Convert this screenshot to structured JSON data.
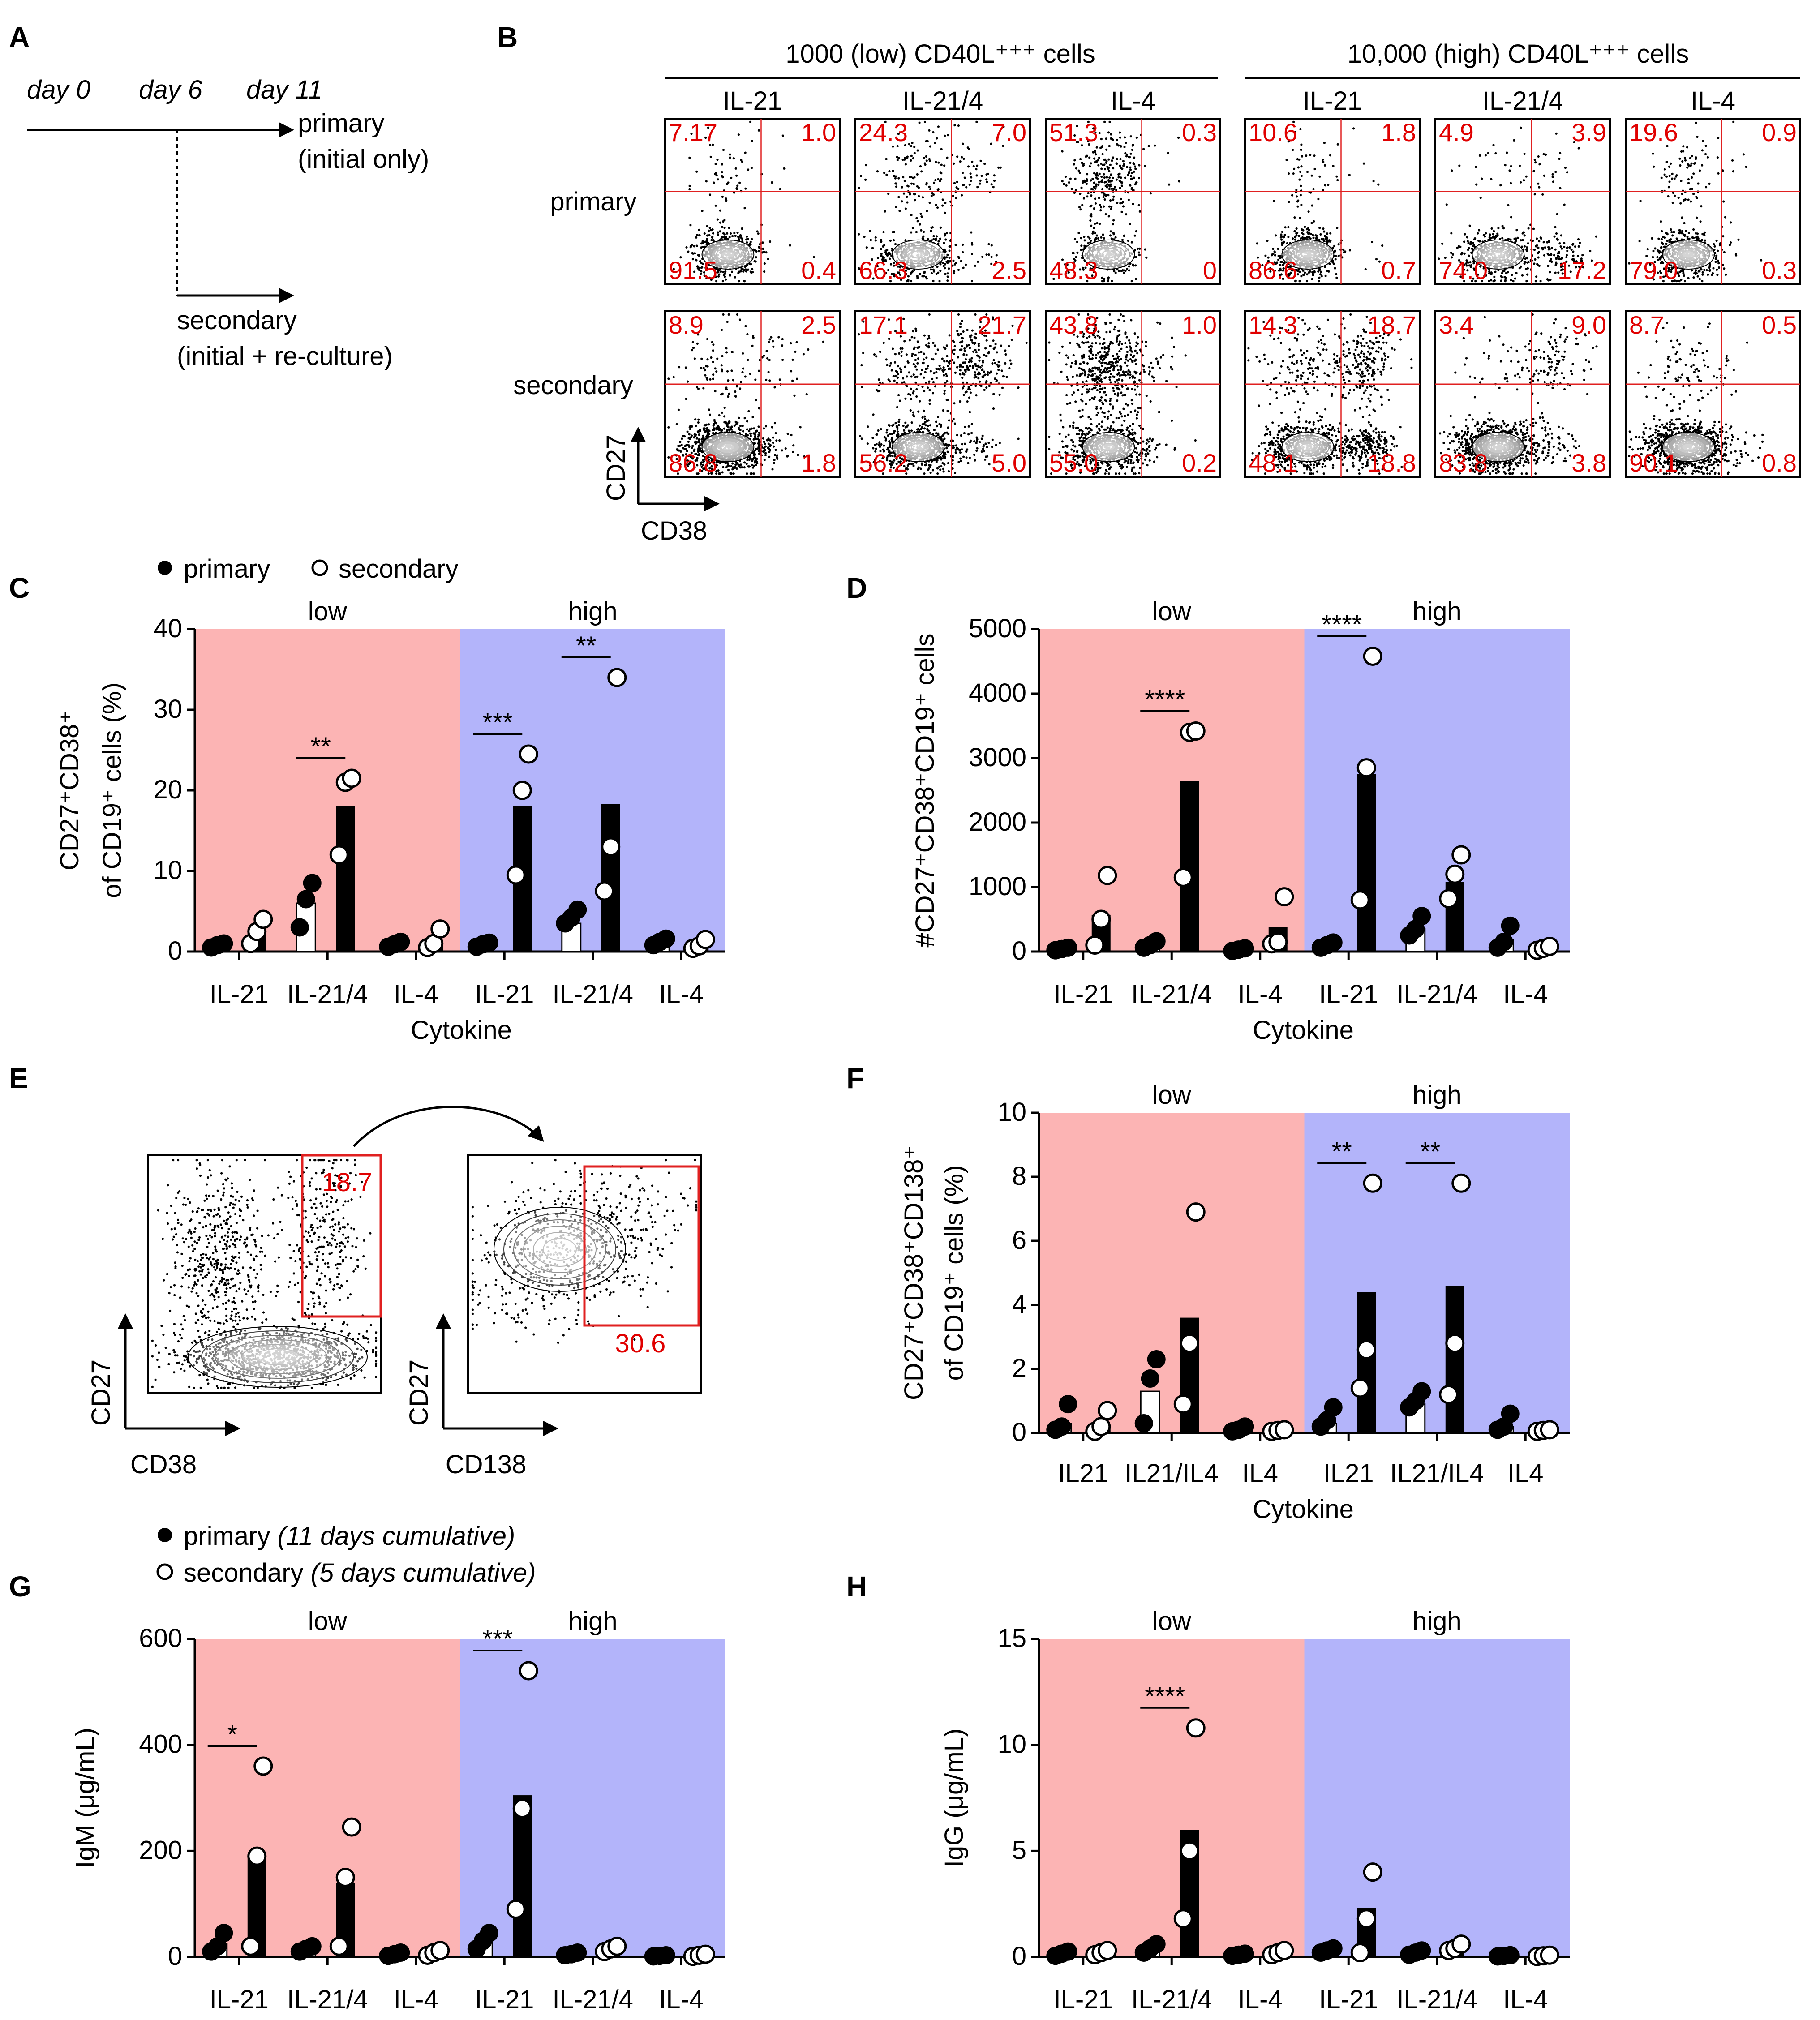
{
  "panels": [
    "A",
    "B",
    "C",
    "D",
    "E",
    "F",
    "G",
    "H"
  ],
  "colors": {
    "low_bg": "#fcb4b4",
    "high_bg": "#b3b4fa",
    "gate": "#e02020",
    "dot": "#000000"
  },
  "panel_a": {
    "days": [
      "day 0",
      "day 6",
      "day 11"
    ],
    "primary_label": "primary",
    "primary_sub": "(initial only)",
    "secondary_label": "secondary",
    "secondary_sub": "(initial + re-culture)"
  },
  "panel_b": {
    "group_low": "1000 (low) CD40L⁺⁺⁺ cells",
    "group_high": "10,000 (high) CD40L⁺⁺⁺ cells",
    "col_labels": [
      "IL-21",
      "IL-21/4",
      "IL-4",
      "IL-21",
      "IL-21/4",
      "IL-4"
    ],
    "row_labels": [
      "primary",
      "secondary"
    ],
    "xaxis": "CD38",
    "yaxis": "CD27",
    "quadrants": [
      [
        [
          "7.17",
          "1.0",
          "91.5",
          "0.4"
        ],
        [
          "24.3",
          "7.0",
          "66.3",
          "2.5"
        ],
        [
          "51.3",
          "0.3",
          "48.3",
          "0"
        ],
        [
          "10.6",
          "1.8",
          "86.6",
          "0.7"
        ],
        [
          "4.9",
          "3.9",
          "74.0",
          "17.2"
        ],
        [
          "19.6",
          "0.9",
          "79.0",
          "0.3"
        ]
      ],
      [
        [
          "8.9",
          "2.5",
          "86.8",
          "1.8"
        ],
        [
          "17.1",
          "21.7",
          "56.2",
          "5.0"
        ],
        [
          "43.8",
          "1.0",
          "55.0",
          "0.2"
        ],
        [
          "14.3",
          "18.7",
          "48.1",
          "18.8"
        ],
        [
          "3.4",
          "9.0",
          "83.8",
          "3.8"
        ],
        [
          "8.7",
          "0.5",
          "90.1",
          "0.8"
        ]
      ]
    ]
  },
  "legend_cd": {
    "primary": "primary",
    "secondary": "secondary"
  },
  "legend_gh": {
    "primary": "primary",
    "primary_note": "(11 days cumulative)",
    "secondary": "secondary",
    "secondary_note": "(5 days cumulative)"
  },
  "panel_e": {
    "gate1": "18.7",
    "gate2": "30.6",
    "plot1_x": "CD38",
    "plot1_y": "CD27",
    "plot2_x": "CD138",
    "plot2_y": "CD27"
  },
  "chart_data": [
    {
      "panel": "C",
      "type": "bar",
      "ylabel_line1": "CD27⁺CD38⁺",
      "ylabel_line2": "of CD19⁺ cells (%)",
      "xlabel": "Cytokine",
      "groups": [
        "low",
        "high"
      ],
      "categories": [
        "IL-21",
        "IL-21/4",
        "IL-4",
        "IL-21",
        "IL-21/4",
        "IL-4"
      ],
      "ylim": [
        0,
        40
      ],
      "yticks": [
        0,
        10,
        20,
        30,
        40
      ],
      "series": [
        {
          "name": "primary",
          "bar_values": [
            0.7,
            6,
            0.8,
            0.9,
            3.5,
            1.2
          ],
          "points": [
            [
              0.5,
              0.8,
              1.0
            ],
            [
              3,
              6.5,
              8.5
            ],
            [
              0.6,
              0.9,
              1.2
            ],
            [
              0.6,
              0.9,
              1.1
            ],
            [
              3.5,
              4.2,
              5.2
            ],
            [
              0.8,
              1.2,
              1.6
            ]
          ]
        },
        {
          "name": "secondary",
          "bar_values": [
            2.5,
            18,
            1.3,
            18,
            18.3,
            1
          ],
          "points": [
            [
              1,
              2.5,
              4
            ],
            [
              12,
              21,
              21.5
            ],
            [
              0.5,
              1,
              2.8
            ],
            [
              9.5,
              20,
              24.5
            ],
            [
              7.5,
              13,
              34
            ],
            [
              0.4,
              0.7,
              1.5
            ]
          ]
        }
      ],
      "significance": [
        {
          "cat": 1,
          "label": "**"
        },
        {
          "cat": 3,
          "label": "***"
        },
        {
          "cat": 4,
          "label": "**"
        }
      ]
    },
    {
      "panel": "D",
      "type": "bar",
      "ylabel_line1": "#CD27⁺CD38⁺CD19⁺ cells",
      "xlabel": "Cytokine",
      "groups": [
        "low",
        "high"
      ],
      "categories": [
        "IL-21",
        "IL-21/4",
        "IL-4",
        "IL-21",
        "IL-21/4",
        "IL-4"
      ],
      "ylim": [
        0,
        5000
      ],
      "yticks": [
        0,
        1000,
        2000,
        3000,
        4000,
        5000
      ],
      "series": [
        {
          "name": "primary",
          "bar_values": [
            40,
            100,
            30,
            100,
            350,
            180
          ],
          "points": [
            [
              20,
              40,
              60
            ],
            [
              60,
              100,
              160
            ],
            [
              10,
              30,
              50
            ],
            [
              60,
              100,
              140
            ],
            [
              250,
              350,
              550
            ],
            [
              60,
              150,
              400
            ]
          ]
        },
        {
          "name": "secondary",
          "bar_values": [
            570,
            2650,
            380,
            2750,
            1080,
            60
          ],
          "points": [
            [
              100,
              500,
              1180
            ],
            [
              1150,
              3400,
              3420
            ],
            [
              120,
              150,
              850
            ],
            [
              800,
              2850,
              4580
            ],
            [
              820,
              1200,
              1500
            ],
            [
              20,
              50,
              80
            ]
          ]
        }
      ],
      "significance": [
        {
          "cat": 1,
          "label": "****"
        },
        {
          "cat": 3,
          "label": "****"
        }
      ]
    },
    {
      "panel": "F",
      "type": "bar",
      "ylabel_line1": "CD27⁺CD38⁺CD138⁺",
      "ylabel_line2": "of CD19⁺ cells (%)",
      "xlabel": "Cytokine",
      "groups": [
        "low",
        "high"
      ],
      "categories": [
        "IL21",
        "IL21/IL4",
        "IL4",
        "IL21",
        "IL21/IL4",
        "IL4"
      ],
      "ylim": [
        0,
        10
      ],
      "yticks": [
        0,
        2,
        4,
        6,
        8,
        10
      ],
      "series": [
        {
          "name": "primary",
          "bar_values": [
            0.3,
            1.3,
            0.1,
            0.3,
            0.9,
            0.2
          ],
          "points": [
            [
              0.1,
              0.2,
              0.9
            ],
            [
              0.3,
              1.7,
              2.3
            ],
            [
              0.05,
              0.1,
              0.2
            ],
            [
              0.2,
              0.4,
              0.8
            ],
            [
              0.8,
              1,
              1.3
            ],
            [
              0.1,
              0.2,
              0.6
            ]
          ]
        },
        {
          "name": "secondary",
          "bar_values": [
            0.2,
            3.6,
            0.08,
            4.4,
            4.6,
            0.08
          ],
          "points": [
            [
              0.05,
              0.2,
              0.7
            ],
            [
              0.9,
              2.8,
              6.9
            ],
            [
              0.05,
              0.08,
              0.1
            ],
            [
              1.4,
              2.6,
              7.8
            ],
            [
              1.2,
              2.8,
              7.8
            ],
            [
              0.05,
              0.08,
              0.1
            ]
          ]
        }
      ],
      "significance": [
        {
          "cat": 3,
          "label": "**"
        },
        {
          "cat": 4,
          "label": "**"
        }
      ]
    },
    {
      "panel": "G",
      "type": "bar",
      "ylabel_line1": "IgM (μg/mL)",
      "xlabel": "",
      "groups": [
        "low",
        "high"
      ],
      "categories": [
        "IL-21",
        "IL-21/4",
        "IL-4",
        "IL-21",
        "IL-21/4",
        "IL-4"
      ],
      "ylim": [
        0,
        600
      ],
      "yticks": [
        0,
        200,
        400,
        600
      ],
      "series": [
        {
          "name": "primary",
          "bar_values": [
            25,
            15,
            5,
            30,
            5,
            2
          ],
          "points": [
            [
              10,
              20,
              45
            ],
            [
              10,
              15,
              20
            ],
            [
              2,
              5,
              8
            ],
            [
              15,
              30,
              45
            ],
            [
              3,
              5,
              8
            ],
            [
              1,
              2,
              3
            ]
          ]
        },
        {
          "name": "secondary",
          "bar_values": [
            190,
            140,
            8,
            305,
            15,
            3
          ],
          "points": [
            [
              20,
              190,
              360
            ],
            [
              20,
              150,
              245
            ],
            [
              3,
              8,
              12
            ],
            [
              90,
              280,
              540
            ],
            [
              10,
              15,
              20
            ],
            [
              1,
              3,
              5
            ]
          ]
        }
      ],
      "significance": [
        {
          "cat": 0,
          "label": "*"
        },
        {
          "cat": 3,
          "label": "***"
        }
      ]
    },
    {
      "panel": "H",
      "type": "bar",
      "ylabel_line1": "IgG (μg/mL)",
      "xlabel": "",
      "groups": [
        "low",
        "high"
      ],
      "categories": [
        "IL-21",
        "IL-21/4",
        "IL-4",
        "IL-21",
        "IL-21/4",
        "IL-4"
      ],
      "ylim": [
        0,
        15
      ],
      "yticks": [
        0,
        5,
        10,
        15
      ],
      "series": [
        {
          "name": "primary",
          "bar_values": [
            0.15,
            0.4,
            0.1,
            0.3,
            0.2,
            0.05
          ],
          "points": [
            [
              0.05,
              0.15,
              0.25
            ],
            [
              0.2,
              0.4,
              0.6
            ],
            [
              0.05,
              0.1,
              0.15
            ],
            [
              0.2,
              0.3,
              0.4
            ],
            [
              0.1,
              0.2,
              0.3
            ],
            [
              0.02,
              0.05,
              0.08
            ]
          ]
        },
        {
          "name": "secondary",
          "bar_values": [
            0.2,
            6,
            0.2,
            2.3,
            0.4,
            0.05
          ],
          "points": [
            [
              0.1,
              0.2,
              0.3
            ],
            [
              1.8,
              5,
              10.8
            ],
            [
              0.1,
              0.2,
              0.3
            ],
            [
              0.2,
              1.8,
              4
            ],
            [
              0.3,
              0.4,
              0.6
            ],
            [
              0.02,
              0.05,
              0.08
            ]
          ]
        }
      ],
      "significance": [
        {
          "cat": 1,
          "label": "****"
        }
      ]
    }
  ]
}
